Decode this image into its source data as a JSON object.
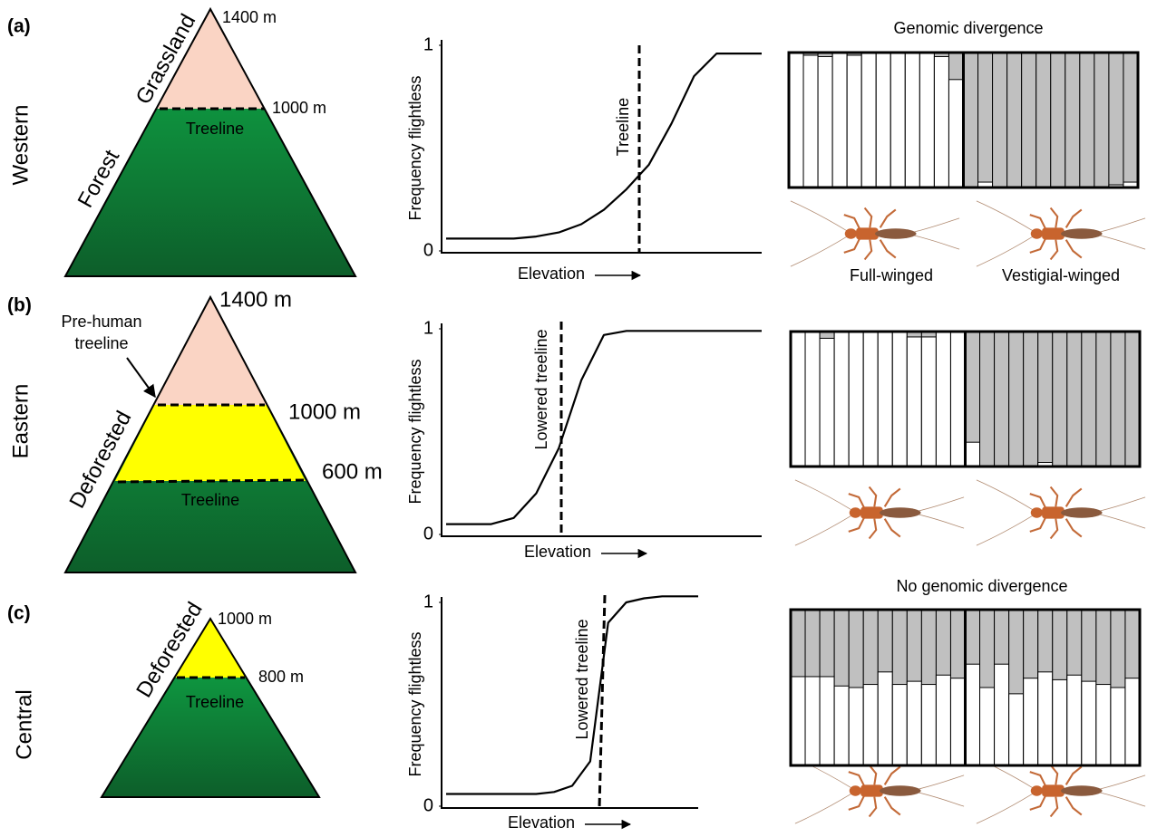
{
  "panels": [
    {
      "label": "(a)",
      "region": "Western",
      "habitats": [
        "Grassland",
        "Forest"
      ],
      "elevations": [
        "1400 m",
        "1000 m"
      ],
      "treeline_label": "Treeline",
      "chart": {
        "type": "line",
        "ylabel": "Frequency flightless",
        "xlabel": "Elevation",
        "ylim": [
          0,
          1
        ],
        "yticks": [
          0,
          1
        ],
        "line_label": "Treeline",
        "values": [
          0.06,
          0.06,
          0.06,
          0.06,
          0.07,
          0.09,
          0.13,
          0.2,
          0.3,
          0.42,
          0.62,
          0.85,
          0.96,
          0.96,
          0.96
        ]
      },
      "structure": {
        "title": "Genomic divergence",
        "groups": [
          {
            "name": "Full-winged",
            "values": [
              1,
              0.98,
              0.97,
              1,
              0.98,
              1,
              1,
              1,
              1,
              1,
              0.97,
              0.8
            ]
          },
          {
            "name": "Vestigial-winged",
            "values": [
              0,
              0.04,
              0,
              0,
              0,
              0,
              0,
              0,
              0,
              0,
              0.02,
              0.04
            ]
          }
        ]
      }
    },
    {
      "label": "(b)",
      "region": "Eastern",
      "habitats": [
        "Deforested"
      ],
      "elevations": [
        "1400 m",
        "1000 m",
        "600 m"
      ],
      "pre_human": [
        "Pre-human",
        "treeline"
      ],
      "treeline_label": "Treeline",
      "chart": {
        "type": "line",
        "ylabel": "Frequency flightless",
        "xlabel": "Elevation",
        "ylim": [
          0,
          1
        ],
        "yticks": [
          0,
          1
        ],
        "line_label": "Lowered treeline",
        "values": [
          0.05,
          0.05,
          0.05,
          0.08,
          0.2,
          0.42,
          0.75,
          0.97,
          0.99,
          0.99,
          0.99,
          0.99,
          0.99,
          0.99,
          0.99
        ]
      },
      "structure": {
        "groups": [
          {
            "values": [
              1,
              1,
              0.95,
              1,
              1,
              1,
              1,
              1,
              0.96,
              0.96,
              1,
              1
            ]
          },
          {
            "values": [
              0.18,
              0,
              0,
              0,
              0,
              0.03,
              0,
              0,
              0,
              0,
              0,
              0
            ]
          }
        ]
      }
    },
    {
      "label": "(c)",
      "region": "Central",
      "habitats": [
        "Deforested"
      ],
      "elevations": [
        "1000 m",
        "800 m"
      ],
      "treeline_label": "Treeline",
      "chart": {
        "type": "line",
        "ylabel": "Frequency flightless",
        "xlabel": "Elevation",
        "ylim": [
          0,
          1
        ],
        "yticks": [
          0,
          1
        ],
        "line_label": "Lowered treeline",
        "values": [
          0.06,
          0.06,
          0.06,
          0.06,
          0.06,
          0.06,
          0.07,
          0.1,
          0.22,
          0.9,
          1.0,
          1.02,
          1.03,
          1.03,
          1.03
        ]
      },
      "structure": {
        "title": "No genomic divergence",
        "groups": [
          {
            "values": [
              0.57,
              0.57,
              0.57,
              0.51,
              0.5,
              0.52,
              0.6,
              0.52,
              0.54,
              0.52,
              0.58,
              0.56
            ]
          },
          {
            "values": [
              0.65,
              0.5,
              0.65,
              0.46,
              0.56,
              0.6,
              0.55,
              0.58,
              0.54,
              0.52,
              0.5,
              0.56
            ]
          }
        ]
      }
    }
  ]
}
